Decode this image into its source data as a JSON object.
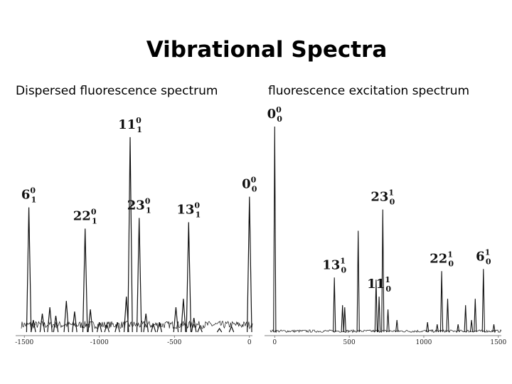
{
  "title": "Vibrational Spectra",
  "panels": {
    "left_title": "Dispersed fluorescence spectrum",
    "right_title": "fluorescence excitation spectrum"
  },
  "colors": {
    "trace": "#111111",
    "background": "#ffffff"
  },
  "chart_data": [
    {
      "type": "line",
      "title": "Dispersed fluorescence spectrum",
      "xlim": [
        -1520,
        20
      ],
      "ylim": [
        0,
        1
      ],
      "xticks": [
        -1500,
        -1000,
        -500,
        0
      ],
      "xtick_labels": [
        "-1500",
        "-1000",
        "-500",
        "0"
      ],
      "grid": false,
      "peaks": [
        {
          "x": -1470,
          "y": 0.6,
          "label": {
            "main": "6",
            "sup": "0",
            "sub": "1"
          }
        },
        {
          "x": -1095,
          "y": 0.5,
          "label": {
            "main": "22",
            "sup": "0",
            "sub": "1"
          }
        },
        {
          "x": -795,
          "y": 0.93,
          "label": {
            "main": "11",
            "sup": "0",
            "sub": "1"
          }
        },
        {
          "x": -735,
          "y": 0.55,
          "label": {
            "main": "23",
            "sup": "0",
            "sub": "1"
          }
        },
        {
          "x": -405,
          "y": 0.53,
          "label": {
            "main": "13",
            "sup": "0",
            "sub": "1"
          }
        },
        {
          "x": 0,
          "y": 0.65,
          "label": {
            "main": "0",
            "sup": "0",
            "sub": "0"
          }
        },
        {
          "x": -1440,
          "y": 0.07
        },
        {
          "x": -1380,
          "y": 0.1
        },
        {
          "x": -1330,
          "y": 0.13
        },
        {
          "x": -1290,
          "y": 0.09
        },
        {
          "x": -1220,
          "y": 0.16
        },
        {
          "x": -1165,
          "y": 0.11
        },
        {
          "x": -1060,
          "y": 0.12
        },
        {
          "x": -1000,
          "y": 0.06
        },
        {
          "x": -950,
          "y": 0.05
        },
        {
          "x": -880,
          "y": 0.06
        },
        {
          "x": -820,
          "y": 0.18
        },
        {
          "x": -690,
          "y": 0.1
        },
        {
          "x": -640,
          "y": 0.05
        },
        {
          "x": -600,
          "y": 0.06
        },
        {
          "x": -490,
          "y": 0.13
        },
        {
          "x": -440,
          "y": 0.17
        },
        {
          "x": -370,
          "y": 0.08
        },
        {
          "x": -330,
          "y": 0.04
        },
        {
          "x": -200,
          "y": 0.03
        },
        {
          "x": -120,
          "y": 0.04
        }
      ]
    },
    {
      "type": "line",
      "title": "fluorescence excitation spectrum",
      "xlim": [
        -30,
        1520
      ],
      "ylim": [
        0,
        1
      ],
      "xticks": [
        0,
        500,
        1000,
        1500
      ],
      "xtick_labels": [
        "0",
        "500",
        "1000",
        "1500"
      ],
      "grid": false,
      "peaks": [
        {
          "x": 0,
          "y": 0.98,
          "label": {
            "main": "0",
            "sup": "0",
            "sub": "0"
          }
        },
        {
          "x": 400,
          "y": 0.27,
          "label": {
            "main": "13",
            "sup": "1",
            "sub": "0"
          }
        },
        {
          "x": 455,
          "y": 0.14
        },
        {
          "x": 470,
          "y": 0.13
        },
        {
          "x": 560,
          "y": 0.49
        },
        {
          "x": 680,
          "y": 0.26
        },
        {
          "x": 700,
          "y": 0.18,
          "label": {
            "main": "11",
            "sup": "1",
            "sub": "0"
          }
        },
        {
          "x": 725,
          "y": 0.59,
          "label": {
            "main": "23",
            "sup": "1",
            "sub": "0"
          }
        },
        {
          "x": 760,
          "y": 0.12
        },
        {
          "x": 820,
          "y": 0.07
        },
        {
          "x": 1025,
          "y": 0.06
        },
        {
          "x": 1090,
          "y": 0.05
        },
        {
          "x": 1120,
          "y": 0.3,
          "label": {
            "main": "22",
            "sup": "1",
            "sub": "0"
          }
        },
        {
          "x": 1160,
          "y": 0.17
        },
        {
          "x": 1230,
          "y": 0.05
        },
        {
          "x": 1280,
          "y": 0.14
        },
        {
          "x": 1320,
          "y": 0.07
        },
        {
          "x": 1345,
          "y": 0.17
        },
        {
          "x": 1400,
          "y": 0.31,
          "label": {
            "main": "6",
            "sup": "1",
            "sub": "0"
          }
        },
        {
          "x": 1470,
          "y": 0.05
        }
      ]
    }
  ]
}
